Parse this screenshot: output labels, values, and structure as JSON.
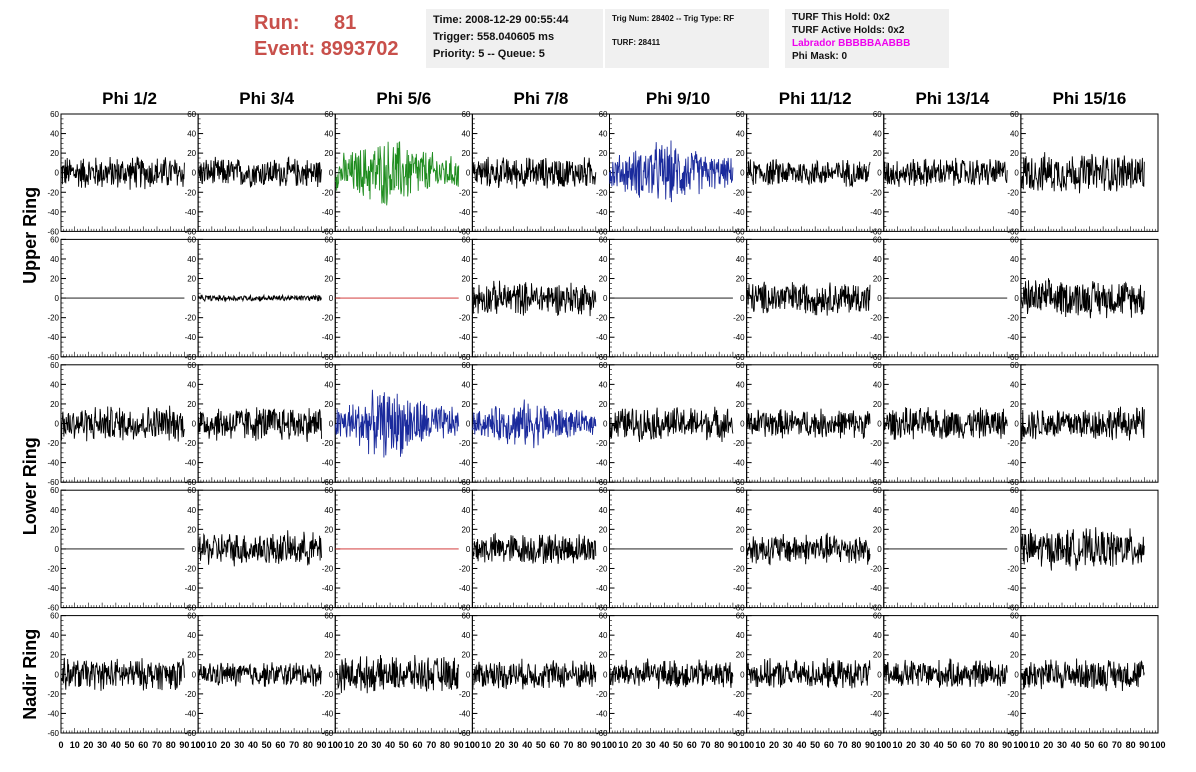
{
  "header": {
    "run_label": "Run:",
    "run_value": "81",
    "event_label": "Event:",
    "event_value": "8993702",
    "time": "Time: 2008-12-29 00:55:44",
    "trigger": "Trigger: 558.040605 ms",
    "priority": "Priority: 5 -- Queue: 5",
    "trig_num": "Trig Num: 28402 -- Trig Type: RF",
    "turf": "TURF: 28411",
    "turf_this_hold": "TURF This Hold: 0x2",
    "turf_active_holds": "TURF Active Holds: 0x2",
    "labrador": "Labrador BBBBBAABBB",
    "phi_mask": "Phi Mask: 0"
  },
  "colors": {
    "header_red": "#c8504b",
    "labrador_magenta": "#ee00ee",
    "trace_black": "#000000",
    "trace_green": "#1e8c1e",
    "trace_blue": "#1a2a9c",
    "trace_red_flat": "#cc2222"
  },
  "chart_data": {
    "type": "line",
    "columns": [
      "Phi 1/2",
      "Phi 3/4",
      "Phi 5/6",
      "Phi 7/8",
      "Phi 9/10",
      "Phi 11/12",
      "Phi 13/14",
      "Phi 15/16"
    ],
    "ring_labels": [
      "Upper Ring",
      "Lower Ring",
      "Nadir Ring"
    ],
    "rows_per_ring": [
      2,
      2,
      1
    ],
    "ylim": [
      -60,
      60
    ],
    "y_ticks": [
      -60,
      -40,
      -20,
      0,
      20,
      40,
      60
    ],
    "xlim": [
      0,
      100
    ],
    "x_ticks": [
      0,
      10,
      20,
      30,
      40,
      50,
      60,
      70,
      80,
      90,
      100
    ],
    "grid": false,
    "panels": [
      [
        {
          "color": "black",
          "amp": 16
        },
        {
          "color": "black",
          "amp": 14
        },
        {
          "color": "green",
          "amp": 26,
          "burst": true
        },
        {
          "color": "black",
          "amp": 15
        },
        {
          "color": "blue",
          "amp": 24,
          "burst": true
        },
        {
          "color": "black",
          "amp": 13
        },
        {
          "color": "black",
          "amp": 14
        },
        {
          "color": "black",
          "amp": 19
        }
      ],
      [
        {
          "color": "black",
          "amp": 0
        },
        {
          "color": "black",
          "amp": 3
        },
        {
          "color": "red",
          "amp": 0
        },
        {
          "color": "black",
          "amp": 16
        },
        {
          "color": "black",
          "amp": 0
        },
        {
          "color": "black",
          "amp": 16
        },
        {
          "color": "black",
          "amp": 0
        },
        {
          "color": "black",
          "amp": 18
        }
      ],
      [
        {
          "color": "black",
          "amp": 17
        },
        {
          "color": "black",
          "amp": 17
        },
        {
          "color": "blue",
          "amp": 26,
          "burst": true
        },
        {
          "color": "blue",
          "amp": 18,
          "burst": true
        },
        {
          "color": "black",
          "amp": 16
        },
        {
          "color": "black",
          "amp": 14
        },
        {
          "color": "black",
          "amp": 15
        },
        {
          "color": "black",
          "amp": 16
        }
      ],
      [
        {
          "color": "black",
          "amp": 0
        },
        {
          "color": "black",
          "amp": 16
        },
        {
          "color": "red",
          "amp": 0
        },
        {
          "color": "black",
          "amp": 15
        },
        {
          "color": "black",
          "amp": 0
        },
        {
          "color": "black",
          "amp": 15
        },
        {
          "color": "black",
          "amp": 0
        },
        {
          "color": "black",
          "amp": 19
        }
      ],
      [
        {
          "color": "black",
          "amp": 15
        },
        {
          "color": "black",
          "amp": 12
        },
        {
          "color": "black",
          "amp": 17
        },
        {
          "color": "black",
          "amp": 14
        },
        {
          "color": "black",
          "amp": 14
        },
        {
          "color": "black",
          "amp": 14
        },
        {
          "color": "black",
          "amp": 14
        },
        {
          "color": "black",
          "amp": 15
        }
      ]
    ]
  }
}
